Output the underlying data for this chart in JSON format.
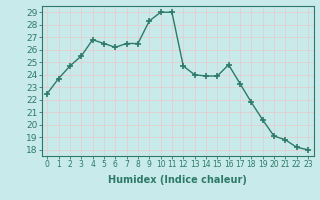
{
  "x": [
    0,
    1,
    2,
    3,
    4,
    5,
    6,
    7,
    8,
    9,
    10,
    11,
    12,
    13,
    14,
    15,
    16,
    17,
    18,
    19,
    20,
    21,
    22,
    23
  ],
  "y": [
    22.5,
    23.7,
    24.7,
    25.5,
    26.8,
    26.5,
    26.2,
    26.5,
    26.5,
    28.3,
    29.0,
    29.0,
    24.7,
    24.0,
    23.9,
    23.9,
    24.8,
    23.3,
    21.8,
    20.4,
    19.1,
    18.8,
    18.2,
    18.0
  ],
  "line_color": "#2d7a6a",
  "marker": "+",
  "marker_size": 5,
  "bg_color": "#c8eaea",
  "grid_color_major": "#e8c8c8",
  "grid_color_minor": "#ddeaea",
  "xlabel": "Humidex (Indice chaleur)",
  "ylim": [
    17.5,
    29.5
  ],
  "xlim": [
    -0.5,
    23.5
  ],
  "yticks": [
    18,
    19,
    20,
    21,
    22,
    23,
    24,
    25,
    26,
    27,
    28,
    29
  ],
  "xticks": [
    0,
    1,
    2,
    3,
    4,
    5,
    6,
    7,
    8,
    9,
    10,
    11,
    12,
    13,
    14,
    15,
    16,
    17,
    18,
    19,
    20,
    21,
    22,
    23
  ],
  "tick_color": "#2d7a6a",
  "label_color": "#2d7a6a",
  "xlabel_fontsize": 7,
  "ytick_fontsize": 6.5,
  "xtick_fontsize": 5.5,
  "linewidth": 1.0
}
